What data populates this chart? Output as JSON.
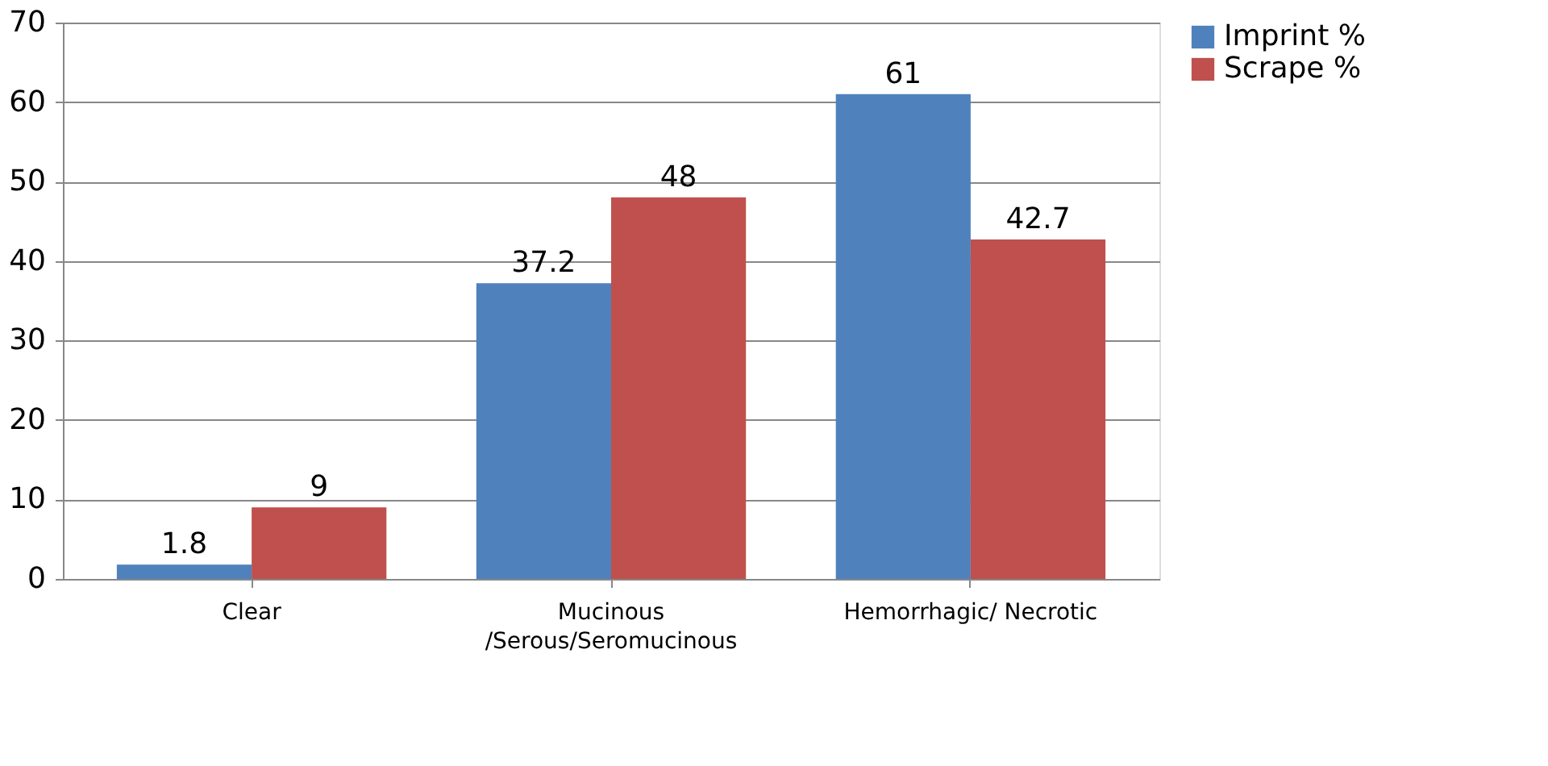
{
  "chart_data": {
    "type": "bar",
    "categories": [
      "Clear",
      "Mucinous /Serous/Seromucinous",
      "Hemorrhagic/ Necrotic"
    ],
    "series": [
      {
        "name": "Imprint %",
        "color": "#4f81bd",
        "values": [
          1.8,
          37.2,
          61
        ]
      },
      {
        "name": "Scrape %",
        "color": "#c0504d",
        "values": [
          9,
          48,
          42.7
        ]
      }
    ],
    "ylim": [
      0,
      70
    ],
    "yticks": [
      0,
      10,
      20,
      30,
      40,
      50,
      60,
      70
    ],
    "grid": "y",
    "legend": "right",
    "data_labels": true
  }
}
